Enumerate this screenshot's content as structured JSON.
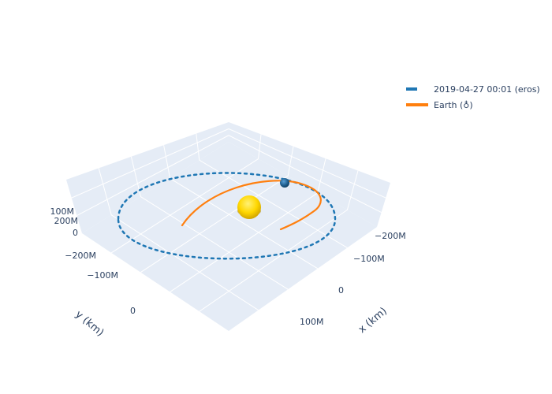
{
  "chart_data": {
    "type": "scatter3d",
    "axes": {
      "x": {
        "title": "x (km)",
        "ticks": [
          "−200M",
          "−100M",
          "0",
          "100M"
        ]
      },
      "y": {
        "title": "y (km)",
        "ticks": [
          "−200M",
          "−100M",
          "0"
        ]
      },
      "z": {
        "ticks": [
          "200M",
          "100M",
          "0",
          "−100M",
          "−200M"
        ]
      }
    },
    "background_color": "#e5ecf6",
    "grid_color": "#ffffff",
    "legend_position": "top-right",
    "series": [
      {
        "name": "2019-04-27 00:01 (eros)",
        "color": "#1f77b4",
        "line_style": "dash",
        "description": "orbit",
        "attractor_marker": "Sun",
        "body_marker": "Eros"
      },
      {
        "name": "Earth (♁)",
        "color": "#ff7f0e",
        "line_style": "solid",
        "description": "trajectory"
      }
    ],
    "markers": [
      {
        "name": "Sun",
        "color": "#ffd700"
      },
      {
        "name": "Eros",
        "color": "#1f77b4"
      }
    ]
  }
}
